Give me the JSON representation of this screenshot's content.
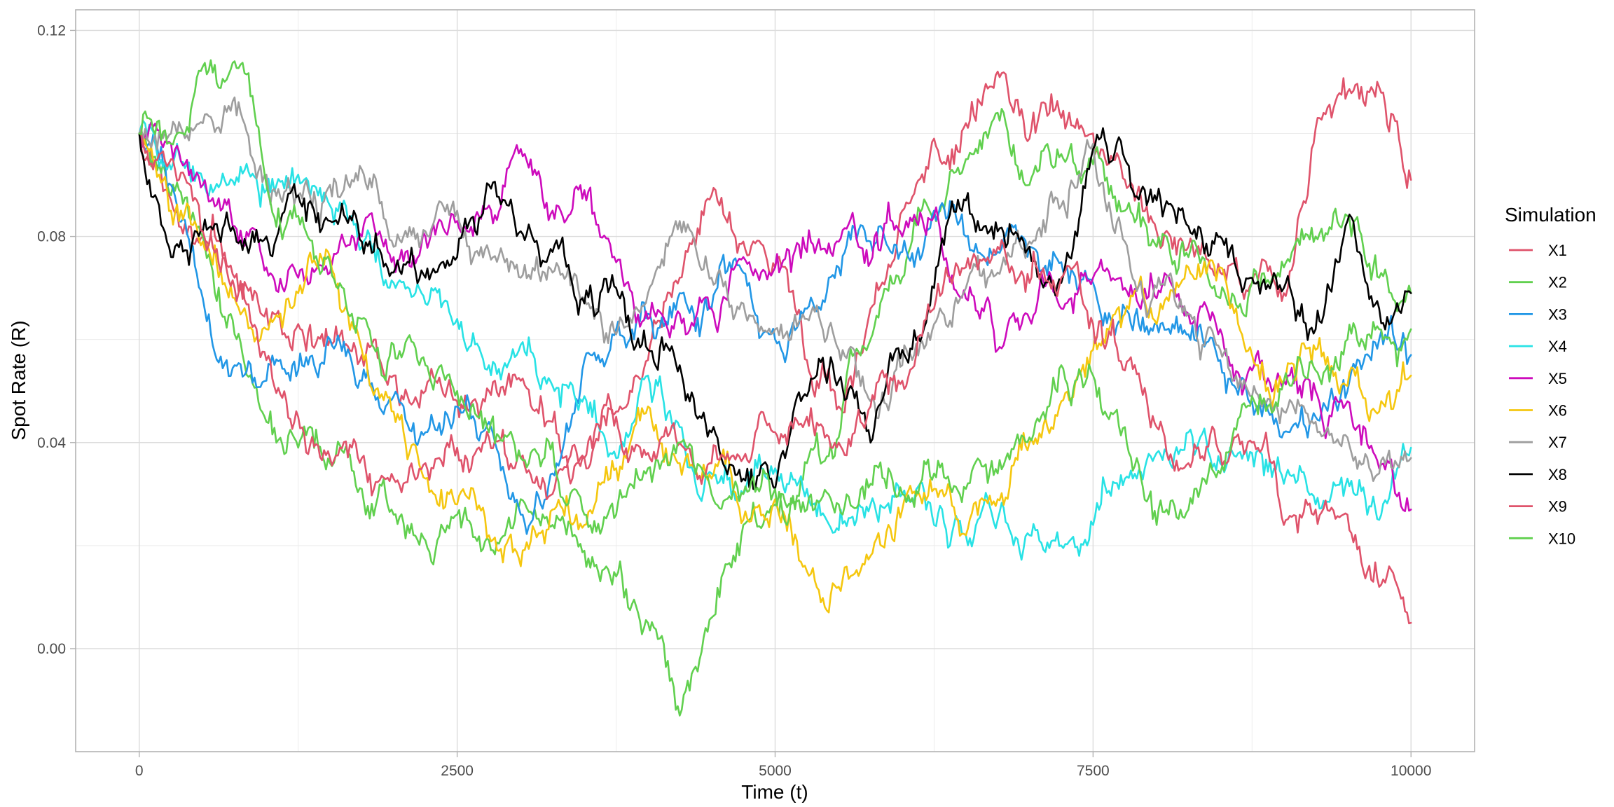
{
  "chart_data": {
    "type": "line",
    "title": "",
    "xlabel": "Time (t)",
    "ylabel": "Spot Rate (R)",
    "xlim": [
      -500,
      10500
    ],
    "ylim": [
      -0.02,
      0.124
    ],
    "xticks": [
      0,
      2500,
      5000,
      7500,
      10000
    ],
    "xtick_labels": [
      "0",
      "2500",
      "5000",
      "7500",
      "10000"
    ],
    "yticks": [
      0.0,
      0.04,
      0.08,
      0.12
    ],
    "ytick_labels": [
      "0.00",
      "0.04",
      "0.08",
      "0.12"
    ],
    "grid": true,
    "legend": {
      "title": "Simulation",
      "placement": "right"
    },
    "series": [
      {
        "name": "X1",
        "color": "#df536b",
        "x": [
          0,
          250,
          500,
          750,
          1000,
          1250,
          1500,
          1750,
          2000,
          2250,
          2500,
          2750,
          3000,
          3250,
          3500,
          3750,
          4000,
          4250,
          4500,
          4750,
          5000,
          5250,
          5500,
          5750,
          6000,
          6250,
          6500,
          6750,
          7000,
          7250,
          7500,
          7750,
          8000,
          8250,
          8500,
          8750,
          9000,
          9250,
          9500,
          9750,
          10000
        ],
        "y": [
          0.1,
          0.087,
          0.08,
          0.072,
          0.066,
          0.063,
          0.06,
          0.057,
          0.053,
          0.05,
          0.048,
          0.05,
          0.052,
          0.044,
          0.037,
          0.046,
          0.056,
          0.072,
          0.088,
          0.079,
          0.074,
          0.056,
          0.047,
          0.066,
          0.085,
          0.099,
          0.102,
          0.112,
          0.099,
          0.103,
          0.1,
          0.091,
          0.081,
          0.078,
          0.073,
          0.071,
          0.069,
          0.101,
          0.108,
          0.109,
          0.091
        ]
      },
      {
        "name": "X2",
        "color": "#61d04f",
        "x": [
          0,
          250,
          500,
          750,
          1000,
          1250,
          1500,
          1750,
          2000,
          2250,
          2500,
          2750,
          3000,
          3250,
          3500,
          3750,
          4000,
          4250,
          4500,
          4750,
          5000,
          5250,
          5500,
          5750,
          6000,
          6250,
          6500,
          6750,
          7000,
          7250,
          7500,
          7750,
          8000,
          8250,
          8500,
          8750,
          9000,
          9250,
          9500,
          9750,
          10000
        ],
        "y": [
          0.1,
          0.088,
          0.08,
          0.061,
          0.044,
          0.039,
          0.036,
          0.031,
          0.026,
          0.021,
          0.026,
          0.021,
          0.029,
          0.024,
          0.019,
          0.014,
          0.005,
          -0.013,
          0.006,
          0.024,
          0.028,
          0.036,
          0.041,
          0.06,
          0.072,
          0.085,
          0.095,
          0.104,
          0.09,
          0.096,
          0.094,
          0.085,
          0.078,
          0.076,
          0.068,
          0.071,
          0.074,
          0.08,
          0.084,
          0.072,
          0.069
        ]
      },
      {
        "name": "X3",
        "color": "#2297e6",
        "x": [
          0,
          250,
          500,
          750,
          1000,
          1250,
          1500,
          1750,
          2000,
          2250,
          2500,
          2750,
          3000,
          3250,
          3500,
          3750,
          4000,
          4250,
          4500,
          4750,
          5000,
          5250,
          5500,
          5750,
          6000,
          6250,
          6500,
          6750,
          7000,
          7250,
          7500,
          7750,
          8000,
          8250,
          8500,
          8750,
          9000,
          9250,
          9500,
          9750,
          10000
        ],
        "y": [
          0.1,
          0.09,
          0.068,
          0.055,
          0.052,
          0.054,
          0.06,
          0.052,
          0.049,
          0.042,
          0.047,
          0.044,
          0.026,
          0.034,
          0.056,
          0.062,
          0.065,
          0.069,
          0.066,
          0.073,
          0.06,
          0.066,
          0.074,
          0.079,
          0.077,
          0.085,
          0.08,
          0.077,
          0.078,
          0.075,
          0.071,
          0.066,
          0.063,
          0.061,
          0.056,
          0.048,
          0.042,
          0.045,
          0.05,
          0.06,
          0.057
        ]
      },
      {
        "name": "X4",
        "color": "#28e2e5",
        "x": [
          0,
          250,
          500,
          750,
          1000,
          1250,
          1500,
          1750,
          2000,
          2250,
          2500,
          2750,
          3000,
          3250,
          3500,
          3750,
          4000,
          4250,
          4500,
          4750,
          5000,
          5250,
          5500,
          5750,
          6000,
          6250,
          6500,
          6750,
          7000,
          7250,
          7500,
          7750,
          8000,
          8250,
          8500,
          8750,
          9000,
          9250,
          9500,
          9750,
          10000
        ],
        "y": [
          0.1,
          0.093,
          0.091,
          0.09,
          0.089,
          0.092,
          0.086,
          0.078,
          0.071,
          0.067,
          0.064,
          0.055,
          0.059,
          0.051,
          0.049,
          0.037,
          0.053,
          0.043,
          0.034,
          0.03,
          0.035,
          0.031,
          0.023,
          0.028,
          0.03,
          0.024,
          0.022,
          0.025,
          0.022,
          0.02,
          0.024,
          0.033,
          0.038,
          0.042,
          0.036,
          0.038,
          0.032,
          0.028,
          0.033,
          0.025,
          0.039
        ]
      },
      {
        "name": "X5",
        "color": "#cd0bbc",
        "x": [
          0,
          250,
          500,
          750,
          1000,
          1250,
          1500,
          1750,
          2000,
          2250,
          2500,
          2750,
          3000,
          3250,
          3500,
          3750,
          4000,
          4250,
          4500,
          4750,
          5000,
          5250,
          5500,
          5750,
          6000,
          6250,
          6500,
          6750,
          7000,
          7250,
          7500,
          7750,
          8000,
          8250,
          8500,
          8750,
          9000,
          9250,
          9500,
          9750,
          10000
        ],
        "y": [
          0.1,
          0.098,
          0.09,
          0.082,
          0.074,
          0.072,
          0.073,
          0.08,
          0.076,
          0.08,
          0.083,
          0.086,
          0.097,
          0.085,
          0.089,
          0.075,
          0.064,
          0.065,
          0.066,
          0.076,
          0.074,
          0.077,
          0.079,
          0.075,
          0.08,
          0.084,
          0.068,
          0.058,
          0.064,
          0.066,
          0.072,
          0.07,
          0.068,
          0.065,
          0.062,
          0.054,
          0.052,
          0.05,
          0.048,
          0.035,
          0.027
        ]
      },
      {
        "name": "X6",
        "color": "#f5c710",
        "x": [
          0,
          250,
          500,
          750,
          1000,
          1250,
          1500,
          1750,
          2000,
          2250,
          2500,
          2750,
          3000,
          3250,
          3500,
          3750,
          4000,
          4250,
          4500,
          4750,
          5000,
          5250,
          5500,
          5750,
          6000,
          6250,
          6500,
          6750,
          7000,
          7250,
          7500,
          7750,
          8000,
          8250,
          8500,
          8750,
          9000,
          9250,
          9500,
          9750,
          10000
        ],
        "y": [
          0.1,
          0.085,
          0.079,
          0.068,
          0.062,
          0.069,
          0.076,
          0.058,
          0.046,
          0.033,
          0.028,
          0.022,
          0.016,
          0.027,
          0.024,
          0.035,
          0.047,
          0.036,
          0.033,
          0.025,
          0.029,
          0.015,
          0.012,
          0.018,
          0.027,
          0.031,
          0.022,
          0.029,
          0.04,
          0.048,
          0.058,
          0.065,
          0.063,
          0.074,
          0.074,
          0.057,
          0.052,
          0.058,
          0.051,
          0.046,
          0.053
        ]
      },
      {
        "name": "X7",
        "color": "#9e9e9e",
        "x": [
          0,
          250,
          500,
          750,
          1000,
          1250,
          1500,
          1750,
          2000,
          2250,
          2500,
          2750,
          3000,
          3250,
          3500,
          3750,
          4000,
          4250,
          4500,
          4750,
          5000,
          5250,
          5500,
          5750,
          6000,
          6250,
          6500,
          6750,
          7000,
          7250,
          7500,
          7750,
          8000,
          8250,
          8500,
          8750,
          9000,
          9250,
          9500,
          9750,
          10000
        ],
        "y": [
          0.1,
          0.1,
          0.102,
          0.107,
          0.092,
          0.088,
          0.09,
          0.093,
          0.078,
          0.081,
          0.085,
          0.077,
          0.072,
          0.073,
          0.068,
          0.061,
          0.069,
          0.083,
          0.072,
          0.067,
          0.062,
          0.064,
          0.058,
          0.048,
          0.055,
          0.063,
          0.07,
          0.073,
          0.079,
          0.086,
          0.098,
          0.079,
          0.07,
          0.065,
          0.058,
          0.049,
          0.046,
          0.044,
          0.041,
          0.034,
          0.037
        ]
      },
      {
        "name": "X8",
        "color": "#000000",
        "x": [
          0,
          250,
          500,
          750,
          1000,
          1250,
          1500,
          1750,
          2000,
          2250,
          2500,
          2750,
          3000,
          3250,
          3500,
          3750,
          4000,
          4250,
          4500,
          4750,
          5000,
          5250,
          5500,
          5750,
          6000,
          6250,
          6500,
          6750,
          7000,
          7250,
          7500,
          7750,
          8000,
          8250,
          8500,
          8750,
          9000,
          9250,
          9500,
          9750,
          10000
        ],
        "y": [
          0.1,
          0.076,
          0.081,
          0.081,
          0.08,
          0.088,
          0.083,
          0.079,
          0.073,
          0.072,
          0.076,
          0.09,
          0.081,
          0.077,
          0.067,
          0.07,
          0.058,
          0.055,
          0.042,
          0.033,
          0.031,
          0.049,
          0.052,
          0.04,
          0.058,
          0.07,
          0.087,
          0.081,
          0.078,
          0.071,
          0.097,
          0.095,
          0.087,
          0.082,
          0.08,
          0.072,
          0.07,
          0.062,
          0.083,
          0.066,
          0.069
        ]
      },
      {
        "name": "X9",
        "color": "#df536b",
        "x": [
          0,
          250,
          500,
          750,
          1000,
          1250,
          1500,
          1750,
          2000,
          2250,
          2500,
          2750,
          3000,
          3250,
          3500,
          3750,
          4000,
          4250,
          4500,
          4750,
          5000,
          5250,
          5500,
          5750,
          6000,
          6250,
          6500,
          6750,
          7000,
          7250,
          7500,
          7750,
          8000,
          8250,
          8500,
          8750,
          9000,
          9250,
          9500,
          9750,
          10000
        ],
        "y": [
          0.1,
          0.095,
          0.081,
          0.07,
          0.056,
          0.045,
          0.037,
          0.037,
          0.033,
          0.036,
          0.039,
          0.041,
          0.037,
          0.03,
          0.037,
          0.045,
          0.038,
          0.04,
          0.036,
          0.037,
          0.042,
          0.045,
          0.04,
          0.047,
          0.052,
          0.066,
          0.074,
          0.078,
          0.071,
          0.072,
          0.063,
          0.054,
          0.043,
          0.036,
          0.038,
          0.04,
          0.024,
          0.027,
          0.026,
          0.012,
          0.005
        ]
      },
      {
        "name": "X10",
        "color": "#61d04f",
        "x": [
          0,
          250,
          500,
          750,
          1000,
          1250,
          1500,
          1750,
          2000,
          2250,
          2500,
          2750,
          3000,
          3250,
          3500,
          3750,
          4000,
          4250,
          4500,
          4750,
          5000,
          5250,
          5500,
          5750,
          6000,
          6250,
          6500,
          6750,
          7000,
          7250,
          7500,
          7750,
          8000,
          8250,
          8500,
          8750,
          9000,
          9250,
          9500,
          9750,
          10000
        ],
        "y": [
          0.1,
          0.098,
          0.113,
          0.114,
          0.09,
          0.084,
          0.075,
          0.064,
          0.059,
          0.055,
          0.05,
          0.042,
          0.037,
          0.04,
          0.026,
          0.026,
          0.035,
          0.04,
          0.03,
          0.03,
          0.031,
          0.027,
          0.028,
          0.032,
          0.03,
          0.034,
          0.031,
          0.034,
          0.041,
          0.055,
          0.053,
          0.043,
          0.024,
          0.027,
          0.034,
          0.049,
          0.052,
          0.054,
          0.06,
          0.062,
          0.062
        ]
      }
    ]
  }
}
